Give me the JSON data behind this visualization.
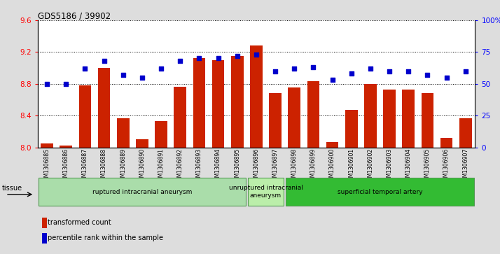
{
  "title": "GDS5186 / 39902",
  "samples": [
    "GSM1306885",
    "GSM1306886",
    "GSM1306887",
    "GSM1306888",
    "GSM1306889",
    "GSM1306890",
    "GSM1306891",
    "GSM1306892",
    "GSM1306893",
    "GSM1306894",
    "GSM1306895",
    "GSM1306896",
    "GSM1306897",
    "GSM1306898",
    "GSM1306899",
    "GSM1306900",
    "GSM1306901",
    "GSM1306902",
    "GSM1306903",
    "GSM1306904",
    "GSM1306905",
    "GSM1306906",
    "GSM1306907"
  ],
  "transformed_count": [
    8.05,
    8.02,
    8.78,
    9.0,
    8.37,
    8.1,
    8.33,
    8.76,
    9.12,
    9.1,
    9.15,
    9.28,
    8.68,
    8.75,
    8.83,
    8.07,
    8.47,
    8.8,
    8.73,
    8.73,
    8.68,
    8.12,
    8.37
  ],
  "percentile_rank": [
    50,
    50,
    62,
    68,
    57,
    55,
    62,
    68,
    70,
    70,
    72,
    73,
    60,
    62,
    63,
    53,
    58,
    62,
    60,
    60,
    57,
    55,
    60
  ],
  "bar_color": "#cc2200",
  "dot_color": "#0000cc",
  "ylim_left": [
    8.0,
    9.6
  ],
  "ylim_right": [
    0,
    100
  ],
  "yticks_left": [
    8.0,
    8.4,
    8.8,
    9.2,
    9.6
  ],
  "yticks_right": [
    0,
    25,
    50,
    75,
    100
  ],
  "ytick_labels_right": [
    "0",
    "25",
    "50",
    "75",
    "100%"
  ],
  "groups": [
    {
      "label": "ruptured intracranial aneurysm",
      "start": 0,
      "end": 11,
      "color": "#aaddaa"
    },
    {
      "label": "unruptured intracranial\naneurysm",
      "start": 11,
      "end": 13,
      "color": "#bbeeaa"
    },
    {
      "label": "superficial temporal artery",
      "start": 13,
      "end": 23,
      "color": "#33bb33"
    }
  ],
  "tissue_label": "tissue",
  "legend_items": [
    {
      "color": "#cc2200",
      "label": "transformed count"
    },
    {
      "color": "#0000cc",
      "label": "percentile rank within the sample"
    }
  ],
  "bg_color": "#dddddd",
  "plot_bg_color": "#ffffff"
}
